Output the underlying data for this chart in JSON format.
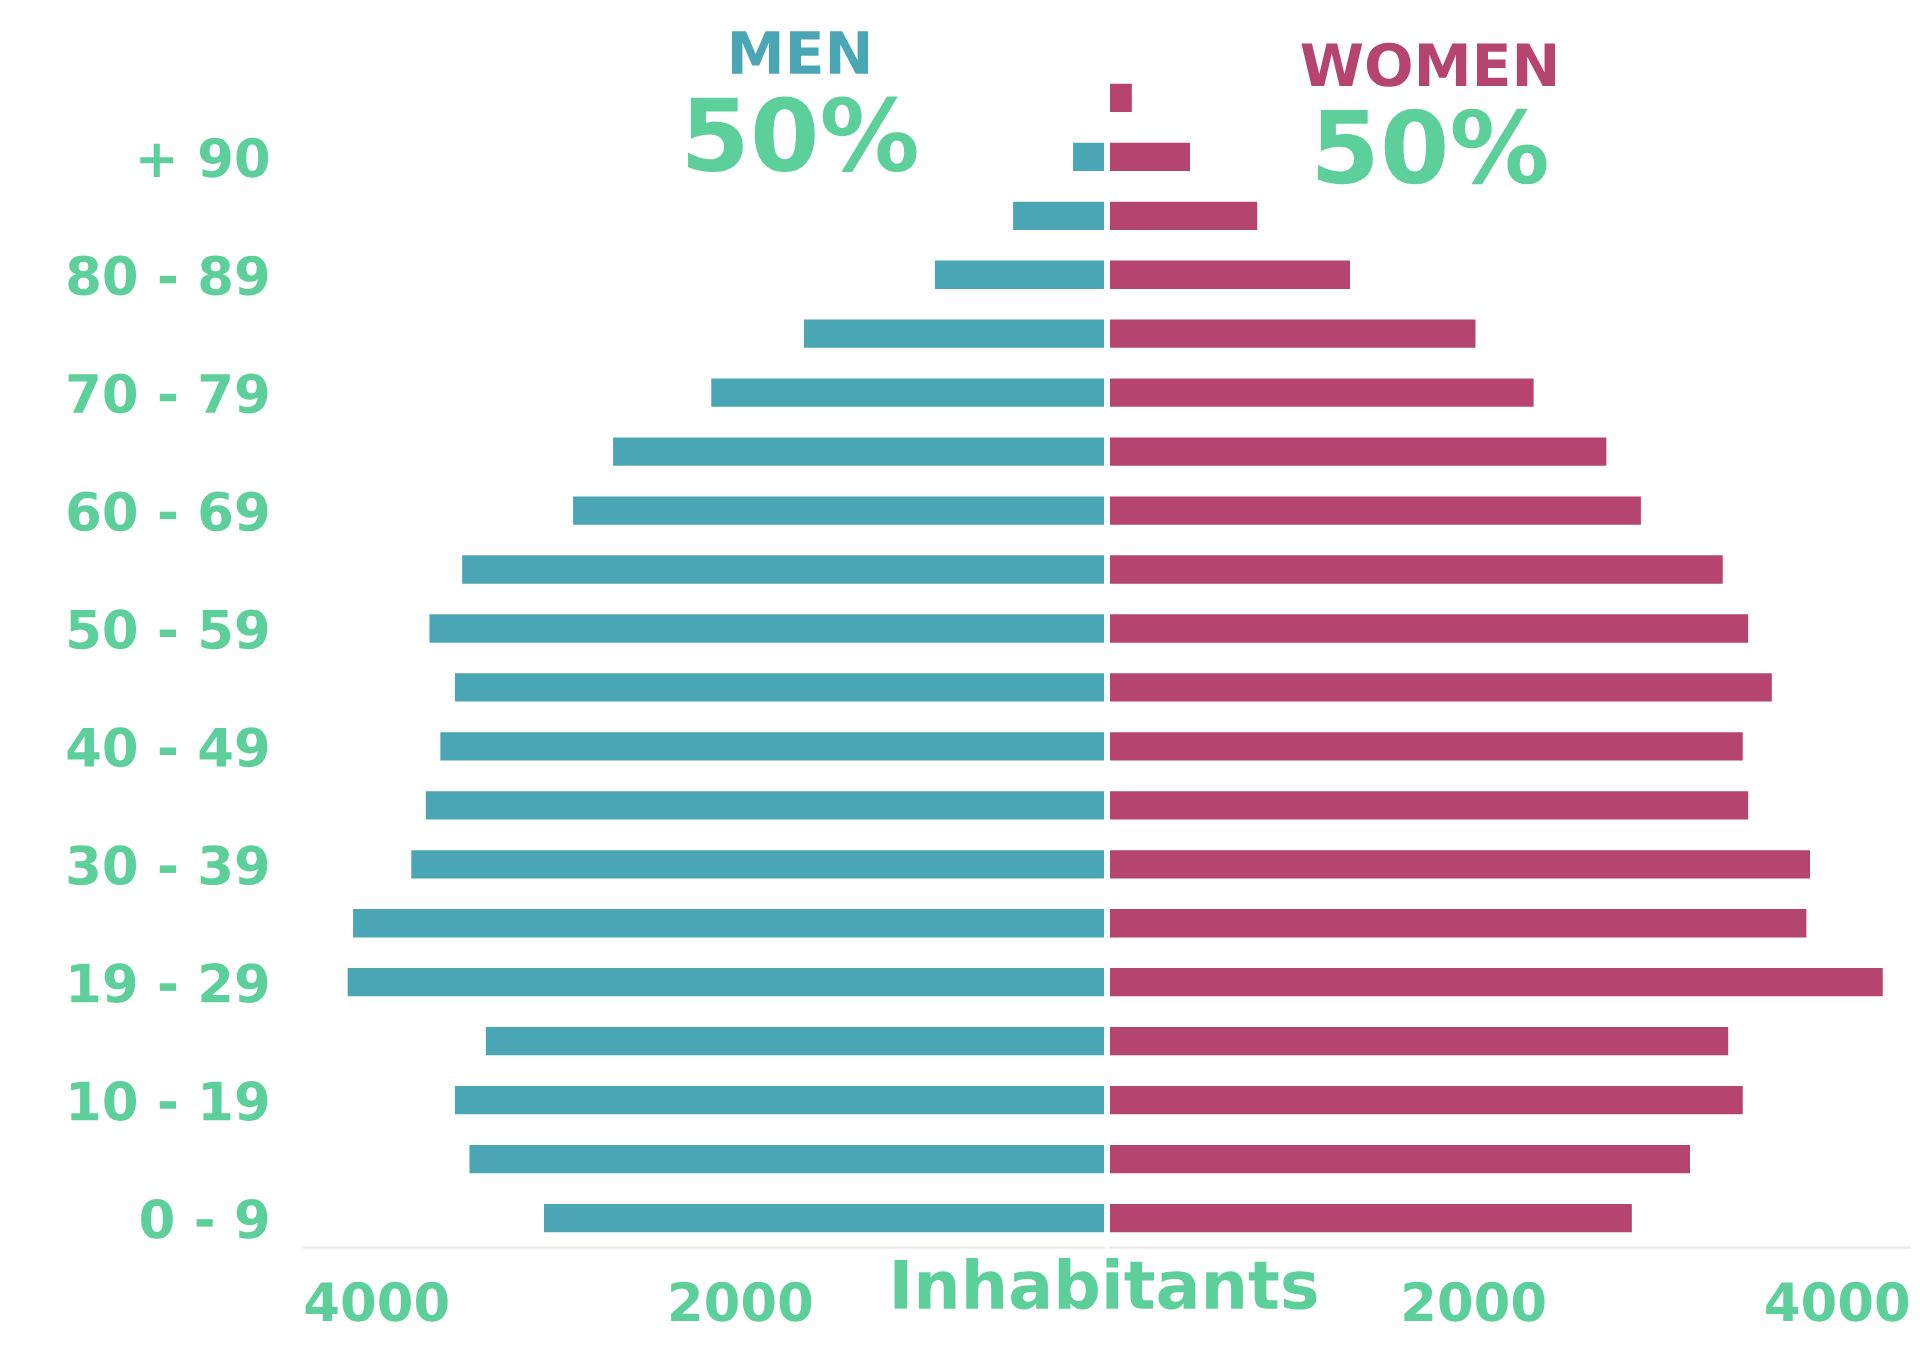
{
  "chart_data": [
    {
      "type": "bar",
      "orientation": "horizontal",
      "xlabel": "Inhabitants",
      "categories": [
        null,
        "+ 90",
        null,
        "80 - 89",
        null,
        "70 - 79",
        null,
        "60 - 69",
        null,
        "50 - 59",
        null,
        "40 - 49",
        null,
        "30 - 39",
        null,
        "19 - 29",
        null,
        "10 - 19",
        null,
        "0 - 9"
      ],
      "series": [
        {
          "name": "MEN",
          "color": "#4aa5b5",
          "values": [
            null,
            170,
            500,
            930,
            1650,
            2160,
            2700,
            2920,
            3530,
            3710,
            3570,
            3650,
            3730,
            3810,
            4130,
            4160,
            3400,
            3570,
            3490,
            3080
          ]
        }
      ],
      "annotations": [
        "50%"
      ],
      "xlim": [
        4400,
        0
      ],
      "xticks": [
        4000,
        2000
      ],
      "grid": false,
      "legend": false
    },
    {
      "type": "bar",
      "orientation": "horizontal",
      "categories": [
        null,
        null,
        null,
        null,
        null,
        null,
        null,
        null,
        null,
        null,
        null,
        null,
        null,
        null,
        null,
        null,
        null,
        null,
        null,
        null
      ],
      "series": [
        {
          "name": "WOMEN",
          "color": "#b5446e",
          "values": [
            120,
            440,
            810,
            1320,
            2010,
            2330,
            2730,
            2920,
            3370,
            3510,
            3640,
            3480,
            3510,
            3850,
            3830,
            4250,
            3400,
            3480,
            3190,
            2870
          ]
        }
      ],
      "annotations": [
        "50%"
      ],
      "xlim": [
        0,
        4400
      ],
      "xticks": [
        2000,
        4000
      ],
      "grid": false,
      "legend": false
    }
  ]
}
